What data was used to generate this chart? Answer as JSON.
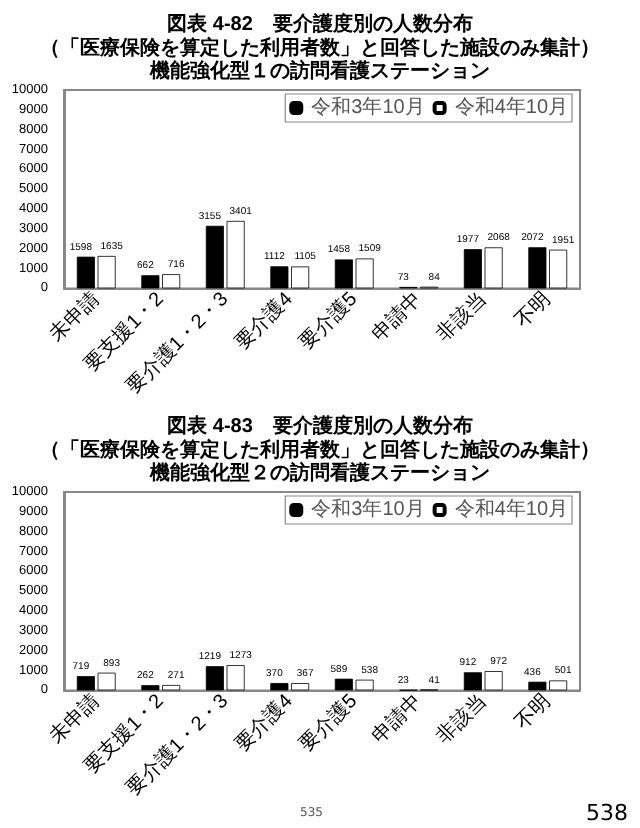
{
  "chart_data": [
    {
      "type": "bar",
      "title": "図表 4-82　要介護度別の人数分布",
      "subtitle": "（「医療保険を算定した利用者数」と回答した施設のみ集計）",
      "annotations": [
        "機能強化型１の訪問看護ステーション"
      ],
      "categories": [
        "未申請",
        "要支援1・2",
        "要介護1・2・3",
        "要介護4",
        "要介護5",
        "申請中",
        "非該当",
        "不明"
      ],
      "series": [
        {
          "name": "令和3年10月",
          "color": "#000000",
          "values": [
            1598,
            662,
            3155,
            1112,
            1458,
            73,
            1977,
            2072
          ]
        },
        {
          "name": "令和4年10月",
          "color": "#ffffff",
          "values": [
            1635,
            716,
            3401,
            1105,
            1509,
            84,
            2068,
            1951
          ]
        }
      ],
      "ylim": [
        0,
        10000
      ],
      "yticks": [
        0,
        1000,
        2000,
        3000,
        4000,
        5000,
        6000,
        7000,
        8000,
        9000,
        10000
      ],
      "data_labels": true,
      "legend": "top right",
      "grid": false
    },
    {
      "type": "bar",
      "title": "図表 4-83　要介護度別の人数分布",
      "subtitle": "（「医療保険を算定した利用者数」と回答した施設のみ集計）",
      "categories": [
        "未申請",
        "要支援1・2",
        "要介護1・2・3",
        "要介護4",
        "要介護5",
        "申請中",
        "非該当",
        "不明"
      ],
      "series": [
        {
          "name": "令和3年10月",
          "color": "#000000",
          "values": [
            719,
            262,
            1219,
            370,
            589,
            23,
            912,
            436
          ]
        },
        {
          "name": "令和4年10月",
          "color": "#ffffff",
          "values": [
            893,
            271,
            1273,
            367,
            538,
            41,
            972,
            501
          ]
        }
      ],
      "ylim": [
        0,
        10000
      ],
      "yticks": [
        0,
        1000,
        2000,
        3000,
        4000,
        5000,
        6000,
        7000,
        8000,
        9000,
        10000
      ],
      "data_labels": true,
      "legend": "top right",
      "grid": false,
      "annotations": [
        "機能強化型２の訪問看護ステーション",
        "535",
        "538"
      ]
    }
  ]
}
